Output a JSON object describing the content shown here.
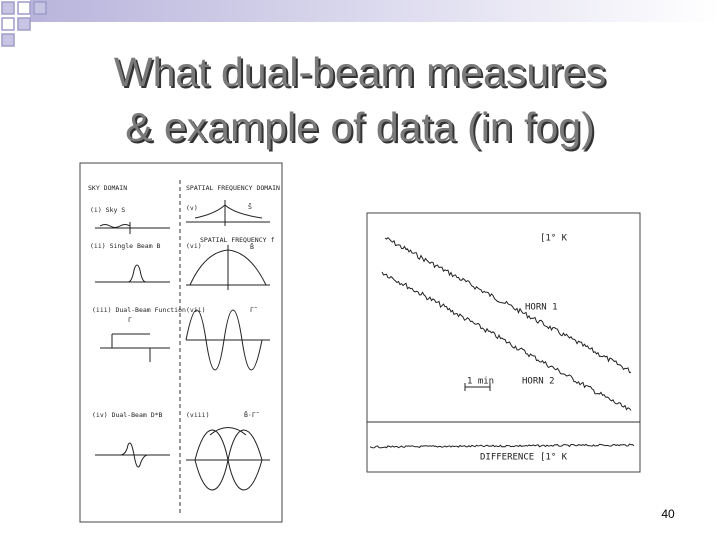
{
  "title": {
    "lines": [
      "What dual-beam measures",
      "& example of data (in fog)"
    ]
  },
  "left_figure": {
    "headers": [
      "SKY DOMAIN",
      "SPATIAL FREQUENCY DOMAIN"
    ],
    "labels": [
      "(i) Sky S",
      "(v)",
      "S̃",
      "(ii) Single Beam B",
      "(vi)",
      "SPATIAL FREQUENCY f",
      "B̃",
      "(iii) Dual-Beam Function",
      "Γ",
      "(vii)",
      "Γ̃",
      "(iv) Dual-Beam D*B",
      "(viii)",
      "B̃·Γ̃"
    ]
  },
  "right_figure": {
    "labels": [
      "[1° K",
      "HORN 1",
      "1 min",
      "HORN 2",
      "DIFFERENCE",
      "[1° K"
    ]
  },
  "page_number": "40"
}
